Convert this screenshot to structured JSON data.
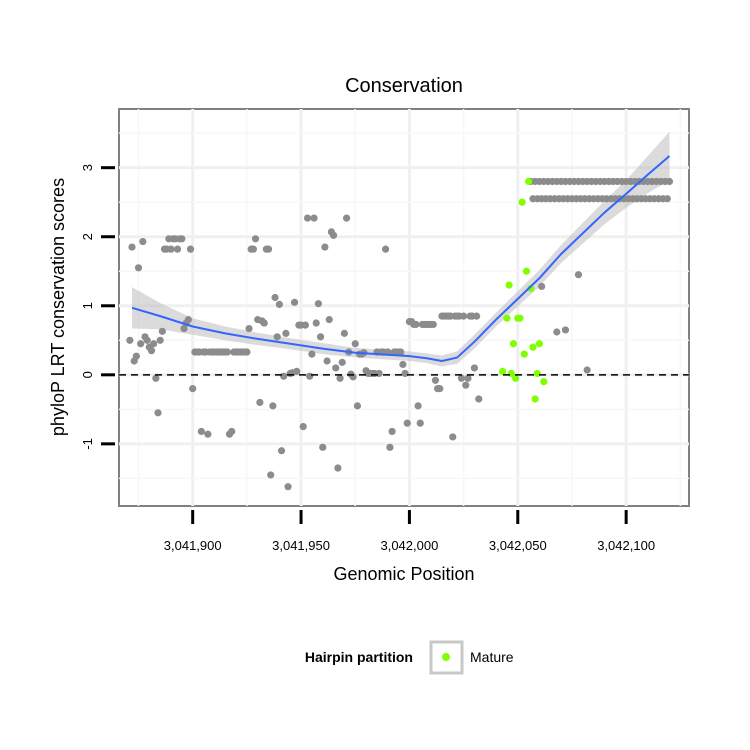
{
  "chart_data": {
    "type": "scatter",
    "title": "Conservation",
    "xlabel": "Genomic Position",
    "ylabel": "phyloP LRT conservation scores",
    "xlim": [
      3041866,
      3042129
    ],
    "ylim": [
      -1.9,
      3.85
    ],
    "x_ticks": [
      3041900,
      3041950,
      3042000,
      3042050,
      3042100
    ],
    "x_tick_labels": [
      "3,041,900",
      "3,041,950",
      "3,042,000",
      "3,042,050",
      "3,042,100"
    ],
    "y_ticks": [
      -1,
      0,
      1,
      2,
      3
    ],
    "y_tick_labels": [
      "-1",
      "0",
      "1",
      "2",
      "3"
    ],
    "reference_line": {
      "y": 0,
      "style": "dashed"
    },
    "grid": true,
    "legend": {
      "title": "Hairpin partition",
      "position": "bottom",
      "entries": [
        {
          "label": "Mature",
          "color": "#7fff00"
        }
      ]
    },
    "colors": {
      "other": "#8c8c8c",
      "mature": "#7fff00",
      "smooth": "#3366ff",
      "band": "#bebebe"
    },
    "series": [
      {
        "values": [
          [
            3041871,
            0.5
          ],
          [
            3041872,
            1.85
          ],
          [
            3041873,
            0.2
          ],
          [
            3041874,
            0.27
          ],
          [
            3041875,
            1.55
          ],
          [
            3041876,
            0.45
          ],
          [
            3041877,
            1.93
          ],
          [
            3041878,
            0.55
          ],
          [
            3041879,
            0.5
          ],
          [
            3041880,
            0.4
          ],
          [
            3041881,
            0.35
          ],
          [
            3041882,
            0.45
          ],
          [
            3041883,
            -0.05
          ],
          [
            3041884,
            -0.55
          ],
          [
            3041885,
            0.5
          ],
          [
            3041886,
            0.63
          ],
          [
            3041887,
            1.82
          ],
          [
            3041888,
            1.82
          ],
          [
            3041889,
            1.97
          ],
          [
            3041890,
            1.82
          ],
          [
            3041891,
            1.97
          ],
          [
            3041892,
            1.97
          ],
          [
            3041893,
            1.82
          ],
          [
            3041894,
            1.97
          ],
          [
            3041895,
            1.97
          ],
          [
            3041896,
            0.67
          ],
          [
            3041897,
            0.75
          ],
          [
            3041898,
            0.8
          ],
          [
            3041899,
            1.82
          ],
          [
            3041900,
            -0.2
          ],
          [
            3041901,
            0.33
          ],
          [
            3041902,
            0.33
          ],
          [
            3041903,
            0.33
          ],
          [
            3041904,
            -0.82
          ],
          [
            3041905,
            0.33
          ],
          [
            3041906,
            0.33
          ],
          [
            3041907,
            -0.86
          ],
          [
            3041908,
            0.33
          ],
          [
            3041909,
            0.33
          ],
          [
            3041910,
            0.33
          ],
          [
            3041911,
            0.33
          ],
          [
            3041912,
            0.33
          ],
          [
            3041913,
            0.33
          ],
          [
            3041914,
            0.33
          ],
          [
            3041915,
            0.33
          ],
          [
            3041916,
            0.33
          ],
          [
            3041917,
            -0.86
          ],
          [
            3041918,
            -0.82
          ],
          [
            3041919,
            0.33
          ],
          [
            3041920,
            0.33
          ],
          [
            3041921,
            0.33
          ],
          [
            3041922,
            0.33
          ],
          [
            3041923,
            0.33
          ],
          [
            3041924,
            0.33
          ],
          [
            3041925,
            0.33
          ],
          [
            3041926,
            0.67
          ],
          [
            3041927,
            1.82
          ],
          [
            3041928,
            1.82
          ],
          [
            3041929,
            1.97
          ],
          [
            3041930,
            0.8
          ],
          [
            3041931,
            -0.4
          ],
          [
            3041932,
            0.78
          ],
          [
            3041933,
            0.75
          ],
          [
            3041934,
            1.82
          ],
          [
            3041935,
            1.82
          ],
          [
            3041936,
            -1.45
          ],
          [
            3041937,
            -0.45
          ],
          [
            3041938,
            1.12
          ],
          [
            3041939,
            0.55
          ],
          [
            3041940,
            1.02
          ],
          [
            3041941,
            -1.1
          ],
          [
            3041942,
            -0.02
          ],
          [
            3041943,
            0.6
          ],
          [
            3041944,
            -1.62
          ],
          [
            3041945,
            0.02
          ],
          [
            3041946,
            0.03
          ],
          [
            3041947,
            1.05
          ],
          [
            3041948,
            0.05
          ],
          [
            3041949,
            0.72
          ],
          [
            3041950,
            0.72
          ],
          [
            3041951,
            -0.75
          ],
          [
            3041952,
            0.72
          ],
          [
            3041953,
            2.27
          ],
          [
            3041954,
            -0.02
          ],
          [
            3041955,
            0.3
          ],
          [
            3041956,
            2.27
          ],
          [
            3041957,
            0.75
          ],
          [
            3041958,
            1.03
          ],
          [
            3041959,
            0.55
          ],
          [
            3041960,
            -1.05
          ],
          [
            3041961,
            1.85
          ],
          [
            3041962,
            0.2
          ],
          [
            3041963,
            0.8
          ],
          [
            3041964,
            2.07
          ],
          [
            3041965,
            2.02
          ],
          [
            3041966,
            0.1
          ],
          [
            3041967,
            -1.35
          ],
          [
            3041968,
            -0.05
          ],
          [
            3041969,
            0.18
          ],
          [
            3041970,
            0.6
          ],
          [
            3041971,
            2.27
          ],
          [
            3041972,
            0.33
          ],
          [
            3041973,
            0.01
          ],
          [
            3041974,
            -0.03
          ],
          [
            3041975,
            0.45
          ],
          [
            3041976,
            -0.45
          ],
          [
            3041977,
            0.3
          ],
          [
            3041978,
            0.3
          ],
          [
            3041979,
            0.32
          ],
          [
            3041980,
            0.06
          ],
          [
            3041981,
            0.02
          ],
          [
            3041982,
            0.02
          ],
          [
            3041983,
            0.02
          ],
          [
            3041984,
            0.02
          ],
          [
            3041985,
            0.33
          ],
          [
            3041986,
            0.02
          ],
          [
            3041987,
            0.33
          ],
          [
            3041988,
            0.33
          ],
          [
            3041989,
            1.82
          ],
          [
            3041990,
            0.33
          ],
          [
            3041991,
            -1.05
          ],
          [
            3041992,
            -0.82
          ],
          [
            3041993,
            0.33
          ],
          [
            3041994,
            0.33
          ],
          [
            3041995,
            0.33
          ],
          [
            3041996,
            0.33
          ],
          [
            3041997,
            0.15
          ],
          [
            3041998,
            0.02
          ],
          [
            3041999,
            -0.7
          ],
          [
            3042000,
            0.77
          ],
          [
            3042001,
            0.77
          ],
          [
            3042002,
            0.73
          ],
          [
            3042003,
            0.73
          ],
          [
            3042004,
            -0.45
          ],
          [
            3042005,
            -0.7
          ],
          [
            3042006,
            0.73
          ],
          [
            3042007,
            0.73
          ],
          [
            3042008,
            0.73
          ],
          [
            3042009,
            0.73
          ],
          [
            3042010,
            0.73
          ],
          [
            3042011,
            0.73
          ],
          [
            3042012,
            -0.08
          ],
          [
            3042013,
            -0.2
          ],
          [
            3042014,
            -0.2
          ],
          [
            3042015,
            0.85
          ],
          [
            3042016,
            0.85
          ],
          [
            3042017,
            0.85
          ],
          [
            3042018,
            0.85
          ],
          [
            3042019,
            0.85
          ],
          [
            3042020,
            -0.9
          ],
          [
            3042021,
            0.85
          ],
          [
            3042022,
            0.85
          ],
          [
            3042023,
            0.85
          ],
          [
            3042024,
            -0.05
          ],
          [
            3042025,
            0.85
          ],
          [
            3042026,
            -0.15
          ],
          [
            3042027,
            -0.05
          ],
          [
            3042028,
            0.85
          ],
          [
            3042029,
            0.85
          ],
          [
            3042030,
            0.1
          ],
          [
            3042031,
            0.85
          ],
          [
            3042032,
            -0.35
          ],
          [
            3042061,
            1.28
          ],
          [
            3042068,
            0.62
          ],
          [
            3042072,
            0.65
          ],
          [
            3042078,
            1.45
          ],
          [
            3042082,
            0.07
          ]
        ]
      },
      {
        "values": [
          [
            3042043,
            0.05
          ],
          [
            3042045,
            0.82
          ],
          [
            3042046,
            1.3
          ],
          [
            3042047,
            0.02
          ],
          [
            3042048,
            0.45
          ],
          [
            3042049,
            -0.05
          ],
          [
            3042050,
            0.82
          ],
          [
            3042051,
            0.82
          ],
          [
            3042052,
            2.5
          ],
          [
            3042053,
            0.3
          ],
          [
            3042054,
            1.5
          ],
          [
            3042055,
            2.8
          ],
          [
            3042056,
            1.25
          ],
          [
            3042057,
            0.4
          ],
          [
            3042058,
            -0.35
          ],
          [
            3042059,
            0.02
          ],
          [
            3042060,
            0.45
          ],
          [
            3042062,
            -0.1
          ]
        ]
      },
      {
        "values": [
          [
            3042056,
            2.8
          ],
          [
            3042057,
            2.55
          ],
          [
            3042058,
            2.8
          ],
          [
            3042059,
            2.55
          ],
          [
            3042060,
            2.8
          ],
          [
            3042061,
            2.55
          ],
          [
            3042062,
            2.8
          ],
          [
            3042063,
            2.55
          ],
          [
            3042064,
            2.8
          ],
          [
            3042065,
            2.55
          ],
          [
            3042066,
            2.8
          ],
          [
            3042067,
            2.55
          ],
          [
            3042068,
            2.8
          ],
          [
            3042069,
            2.55
          ],
          [
            3042070,
            2.8
          ],
          [
            3042071,
            2.55
          ],
          [
            3042072,
            2.8
          ],
          [
            3042073,
            2.55
          ],
          [
            3042074,
            2.8
          ],
          [
            3042075,
            2.55
          ],
          [
            3042076,
            2.8
          ],
          [
            3042077,
            2.55
          ],
          [
            3042078,
            2.8
          ],
          [
            3042079,
            2.55
          ],
          [
            3042080,
            2.8
          ],
          [
            3042081,
            2.55
          ],
          [
            3042082,
            2.8
          ],
          [
            3042083,
            2.55
          ],
          [
            3042084,
            2.8
          ],
          [
            3042085,
            2.55
          ],
          [
            3042086,
            2.8
          ],
          [
            3042087,
            2.55
          ],
          [
            3042088,
            2.8
          ],
          [
            3042089,
            2.55
          ],
          [
            3042090,
            2.8
          ],
          [
            3042091,
            2.55
          ],
          [
            3042092,
            2.8
          ],
          [
            3042093,
            2.55
          ],
          [
            3042094,
            2.8
          ],
          [
            3042095,
            2.55
          ],
          [
            3042096,
            2.8
          ],
          [
            3042097,
            2.55
          ],
          [
            3042098,
            2.8
          ],
          [
            3042099,
            2.55
          ],
          [
            3042100,
            2.8
          ],
          [
            3042101,
            2.55
          ],
          [
            3042102,
            2.8
          ],
          [
            3042103,
            2.55
          ],
          [
            3042104,
            2.8
          ],
          [
            3042105,
            2.55
          ],
          [
            3042106,
            2.8
          ],
          [
            3042107,
            2.55
          ],
          [
            3042108,
            2.8
          ],
          [
            3042109,
            2.55
          ],
          [
            3042110,
            2.8
          ],
          [
            3042111,
            2.55
          ],
          [
            3042112,
            2.8
          ],
          [
            3042113,
            2.55
          ],
          [
            3042114,
            2.8
          ],
          [
            3042115,
            2.55
          ],
          [
            3042116,
            2.8
          ],
          [
            3042117,
            2.55
          ],
          [
            3042118,
            2.8
          ],
          [
            3042119,
            2.55
          ],
          [
            3042120,
            2.8
          ]
        ]
      }
    ],
    "smooth": [
      {
        "x": 3041872,
        "y": 0.97,
        "lo": 0.67,
        "hi": 1.27
      },
      {
        "x": 3041885,
        "y": 0.85,
        "lo": 0.66,
        "hi": 1.04
      },
      {
        "x": 3041900,
        "y": 0.7,
        "lo": 0.58,
        "hi": 0.82
      },
      {
        "x": 3041915,
        "y": 0.6,
        "lo": 0.5,
        "hi": 0.7
      },
      {
        "x": 3041930,
        "y": 0.52,
        "lo": 0.43,
        "hi": 0.61
      },
      {
        "x": 3041945,
        "y": 0.45,
        "lo": 0.37,
        "hi": 0.53
      },
      {
        "x": 3041960,
        "y": 0.38,
        "lo": 0.3,
        "hi": 0.46
      },
      {
        "x": 3041975,
        "y": 0.32,
        "lo": 0.25,
        "hi": 0.39
      },
      {
        "x": 3041990,
        "y": 0.29,
        "lo": 0.22,
        "hi": 0.36
      },
      {
        "x": 3042000,
        "y": 0.27,
        "lo": 0.2,
        "hi": 0.34
      },
      {
        "x": 3042008,
        "y": 0.24,
        "lo": 0.17,
        "hi": 0.31
      },
      {
        "x": 3042015,
        "y": 0.2,
        "lo": 0.12,
        "hi": 0.28
      },
      {
        "x": 3042022,
        "y": 0.25,
        "lo": 0.16,
        "hi": 0.34
      },
      {
        "x": 3042030,
        "y": 0.48,
        "lo": 0.38,
        "hi": 0.58
      },
      {
        "x": 3042040,
        "y": 0.8,
        "lo": 0.7,
        "hi": 0.9
      },
      {
        "x": 3042050,
        "y": 1.1,
        "lo": 0.99,
        "hi": 1.21
      },
      {
        "x": 3042060,
        "y": 1.4,
        "lo": 1.28,
        "hi": 1.52
      },
      {
        "x": 3042070,
        "y": 1.75,
        "lo": 1.62,
        "hi": 1.88
      },
      {
        "x": 3042080,
        "y": 2.05,
        "lo": 1.9,
        "hi": 2.2
      },
      {
        "x": 3042090,
        "y": 2.35,
        "lo": 2.18,
        "hi": 2.52
      },
      {
        "x": 3042100,
        "y": 2.62,
        "lo": 2.42,
        "hi": 2.82
      },
      {
        "x": 3042110,
        "y": 2.9,
        "lo": 2.63,
        "hi": 3.17
      },
      {
        "x": 3042120,
        "y": 3.17,
        "lo": 2.82,
        "hi": 3.52
      }
    ]
  }
}
